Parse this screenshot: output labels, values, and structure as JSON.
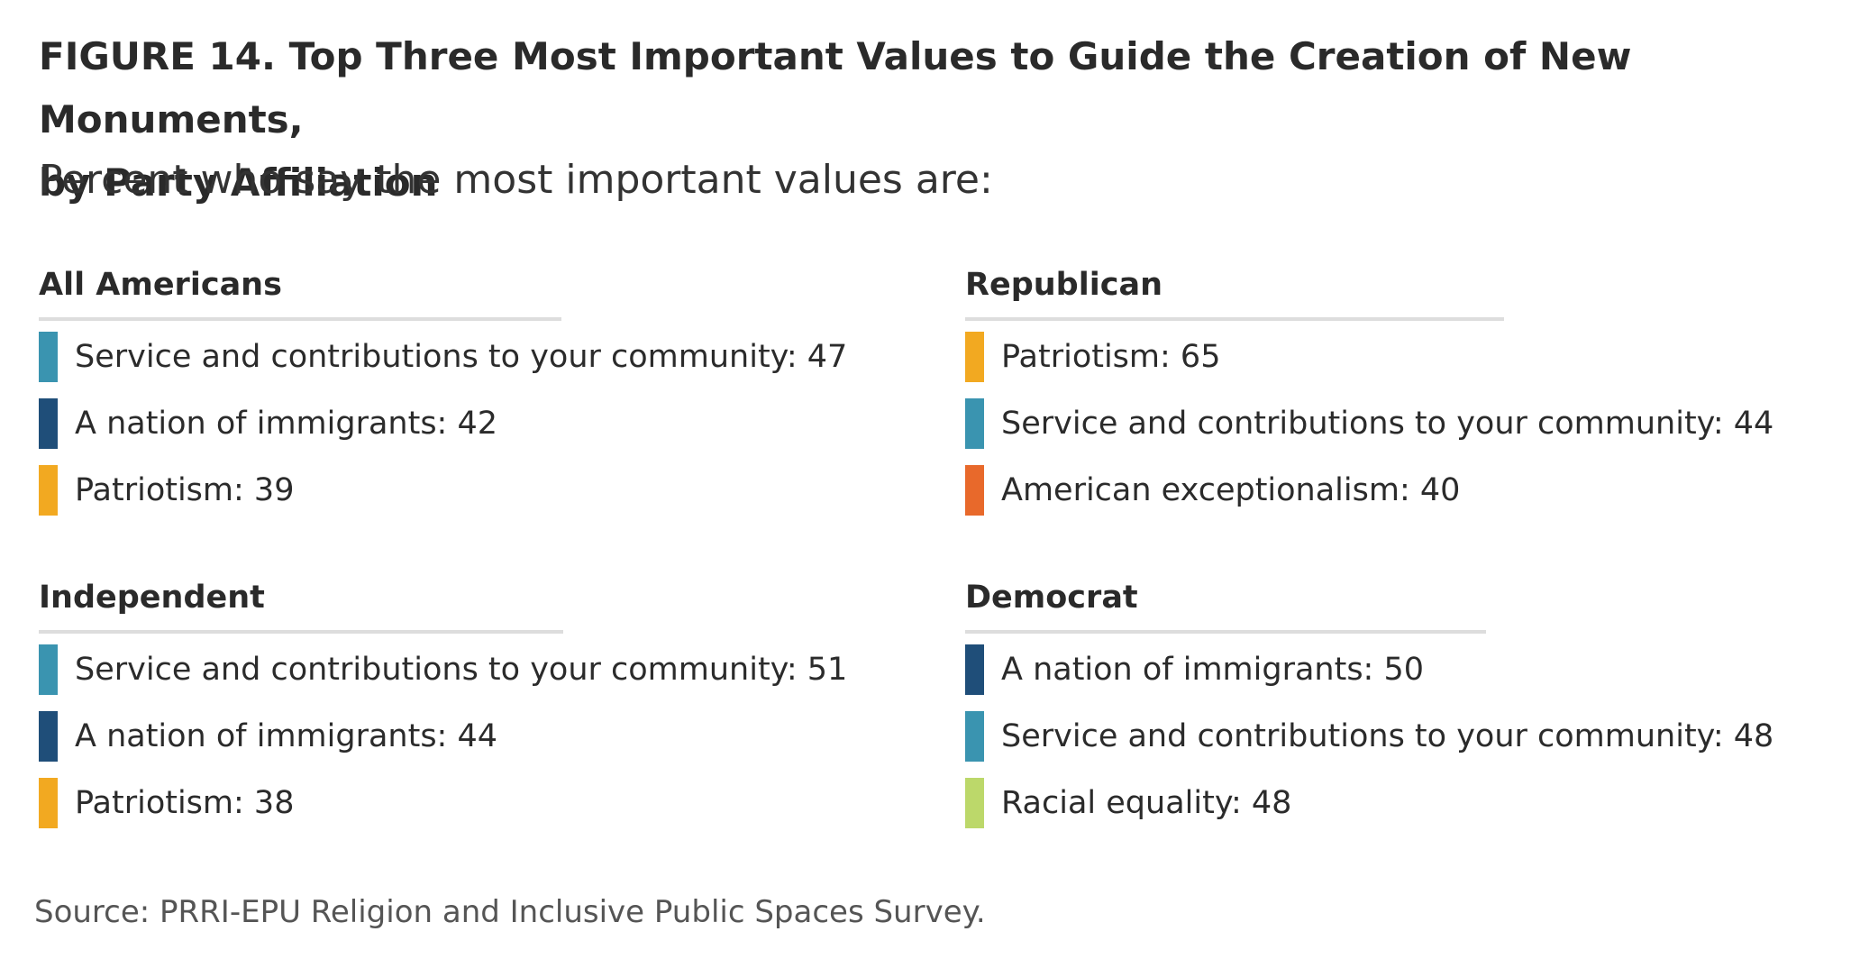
{
  "chart_data": {
    "type": "table",
    "title_line1": "FIGURE 14. Top Three Most Important Values to Guide the Creation of New Monuments,",
    "title_line2": "by Party Affiliation",
    "subtitle": "Percent who say the most important values are:",
    "source": "Source: PRRI-EPU Religion and Inclusive Public Spaces Survey.",
    "colors": {
      "service": "#3a94b0",
      "immigrants": "#1f4e79",
      "patriotism": "#f2a921",
      "exceptionalism": "#e8692b",
      "racial_equality": "#bcd86a"
    },
    "panels": [
      {
        "group": "All Americans",
        "items": [
          {
            "label": "Service and contributions to your community: 47",
            "category": "Service and contributions to your community",
            "value": 47,
            "color": "#3a94b0"
          },
          {
            "label": "A nation of immigrants: 42",
            "category": "A nation of immigrants",
            "value": 42,
            "color": "#1f4e79"
          },
          {
            "label": "Patriotism: 39",
            "category": "Patriotism",
            "value": 39,
            "color": "#f2a921"
          }
        ]
      },
      {
        "group": "Republican",
        "items": [
          {
            "label": "Patriotism: 65",
            "category": "Patriotism",
            "value": 65,
            "color": "#f2a921"
          },
          {
            "label": "Service and contributions to your community: 44",
            "category": "Service and contributions to your community",
            "value": 44,
            "color": "#3a94b0"
          },
          {
            "label": "American exceptionalism: 40",
            "category": "American exceptionalism",
            "value": 40,
            "color": "#e8692b"
          }
        ]
      },
      {
        "group": "Independent",
        "items": [
          {
            "label": "Service and contributions to your community: 51",
            "category": "Service and contributions to your community",
            "value": 51,
            "color": "#3a94b0"
          },
          {
            "label": "A nation of immigrants: 44",
            "category": "A nation of immigrants",
            "value": 44,
            "color": "#1f4e79"
          },
          {
            "label": "Patriotism: 38",
            "category": "Patriotism",
            "value": 38,
            "color": "#f2a921"
          }
        ]
      },
      {
        "group": "Democrat",
        "items": [
          {
            "label": "A nation of immigrants: 50",
            "category": "A nation of immigrants",
            "value": 50,
            "color": "#1f4e79"
          },
          {
            "label": "Service and contributions to your community: 48",
            "category": "Service and contributions to your community",
            "value": 48,
            "color": "#3a94b0"
          },
          {
            "label": "Racial equality: 48",
            "category": "Racial equality",
            "value": 48,
            "color": "#bcd86a"
          }
        ]
      }
    ]
  }
}
